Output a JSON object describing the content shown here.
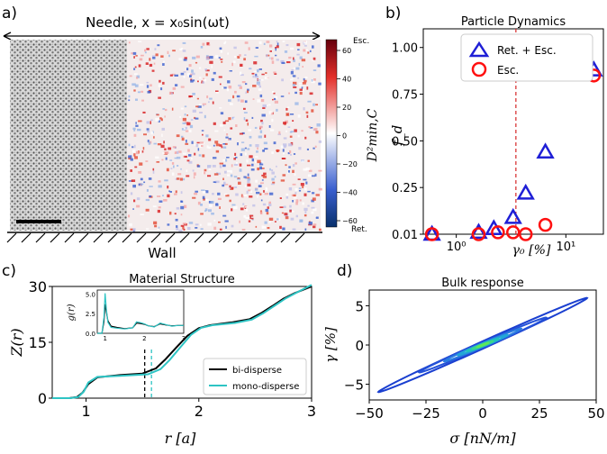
{
  "panel_labels": {
    "a": "a)",
    "b": "b)",
    "c": "c)",
    "d": "d)"
  },
  "panel_a": {
    "needle_label": "Needle, x = x₀sin(ωt)",
    "wall_label": "Wall",
    "colorbar": {
      "top_label": "Esc.",
      "bottom_label": "Ret.",
      "axis_label": "D²min,C",
      "ticks": [
        "60",
        "40",
        "20",
        "0",
        "−20",
        "−40",
        "−60"
      ],
      "colors": {
        "high": "#a50f15",
        "mid": "#ffffff",
        "low": "#08306b"
      }
    }
  },
  "chart_data": [
    {
      "id": "b",
      "type": "scatter",
      "title": "Particle Dynamics",
      "xlabel": "γ₀ [%]",
      "ylabel": "f_d",
      "xscale": "log",
      "xlim": [
        0.5,
        22
      ],
      "ylim": [
        0.0,
        1.1
      ],
      "yticks": [
        "0.01",
        "0.25",
        "0.50",
        "0.75",
        "1.00"
      ],
      "ytick_values": [
        0.01,
        0.25,
        0.5,
        0.75,
        1.0
      ],
      "xticks": [
        "10⁰",
        "10¹"
      ],
      "xtick_values": [
        1,
        10
      ],
      "vline": {
        "x": 3.5,
        "color": "#d62728",
        "style": "dashed"
      },
      "series": [
        {
          "name": "Ret. + Esc.",
          "marker": "triangle",
          "color": "#1f1fd6",
          "x": [
            0.6,
            1.6,
            2.2,
            3.3,
            4.3,
            6.5,
            18
          ],
          "y": [
            0.0,
            0.01,
            0.03,
            0.09,
            0.22,
            0.44,
            0.88
          ]
        },
        {
          "name": "Esc.",
          "marker": "circle",
          "color": "#ff1010",
          "x": [
            0.6,
            1.6,
            2.4,
            3.3,
            4.3,
            6.5,
            18
          ],
          "y": [
            0.0,
            0.0,
            0.01,
            0.01,
            0.0,
            0.05,
            0.85
          ]
        }
      ]
    },
    {
      "id": "c",
      "type": "line",
      "title": "Material Structure",
      "xlabel": "r [a]",
      "ylabel": "Z(r)",
      "xlim": [
        0.7,
        3.0
      ],
      "ylim": [
        0,
        30
      ],
      "xticks": [
        "1",
        "2",
        "3"
      ],
      "xtick_values": [
        1,
        2,
        3
      ],
      "yticks": [
        "0",
        "15",
        "30"
      ],
      "ytick_values": [
        0,
        15,
        30
      ],
      "series": [
        {
          "name": "bi-disperse",
          "color": "#000000",
          "x": [
            0.7,
            0.85,
            0.92,
            0.97,
            1.02,
            1.1,
            1.3,
            1.5,
            1.62,
            1.7,
            1.8,
            1.9,
            2.0,
            2.1,
            2.3,
            2.45,
            2.55,
            2.65,
            2.75,
            2.85,
            3.0
          ],
          "y": [
            0,
            0,
            0.3,
            1.5,
            3.8,
            5.6,
            6.2,
            6.6,
            8.0,
            10.3,
            13.6,
            16.8,
            18.8,
            19.6,
            20.4,
            21.2,
            22.8,
            24.7,
            26.7,
            28.2,
            30.0
          ]
        },
        {
          "name": "mono-disperse",
          "color": "#2ec4c4",
          "x": [
            0.7,
            0.86,
            0.93,
            0.98,
            1.02,
            1.1,
            1.3,
            1.55,
            1.66,
            1.74,
            1.84,
            1.93,
            2.02,
            2.12,
            2.32,
            2.47,
            2.57,
            2.67,
            2.77,
            2.87,
            3.0
          ],
          "y": [
            0,
            0,
            0.3,
            1.8,
            4.2,
            5.7,
            6.0,
            6.4,
            7.8,
            10.2,
            13.8,
            17.0,
            18.9,
            19.6,
            20.2,
            21.1,
            22.8,
            24.8,
            26.8,
            28.4,
            30.4
          ]
        }
      ],
      "vlines": [
        {
          "x": 1.52,
          "color": "#000000"
        },
        {
          "x": 1.58,
          "color": "#2ec4c4"
        }
      ],
      "inset": {
        "ylabel": "g(r)",
        "xlim": [
          0.8,
          3.0
        ],
        "ylim": [
          0,
          5.5
        ],
        "xticks": [
          "1",
          "2",
          "3"
        ],
        "xtick_values": [
          1,
          2,
          3
        ],
        "yticks": [
          "0.0",
          "2.5",
          "5.0"
        ],
        "ytick_values": [
          0,
          2.5,
          5.0
        ],
        "series": [
          {
            "name": "bi-disperse",
            "color": "#000000",
            "x": [
              0.8,
              0.92,
              0.97,
              1.0,
              1.03,
              1.07,
              1.15,
              1.3,
              1.5,
              1.7,
              1.8,
              1.9,
              2.0,
              2.1,
              2.25,
              2.4,
              2.55,
              2.7,
              2.85,
              3.0
            ],
            "y": [
              0,
              0,
              1.5,
              3.7,
              2.8,
              1.6,
              0.9,
              0.75,
              0.6,
              0.7,
              1.3,
              1.25,
              1.15,
              0.95,
              0.85,
              1.2,
              1.05,
              0.95,
              1.0,
              1.0
            ]
          },
          {
            "name": "mono-disperse",
            "color": "#2ec4c4",
            "x": [
              0.8,
              0.92,
              0.97,
              1.0,
              1.03,
              1.07,
              1.15,
              1.3,
              1.5,
              1.7,
              1.8,
              1.9,
              2.0,
              2.1,
              2.25,
              2.4,
              2.55,
              2.7,
              2.85,
              3.0
            ],
            "y": [
              0,
              0,
              2.0,
              5.1,
              3.2,
              1.4,
              0.75,
              0.65,
              0.55,
              0.7,
              1.45,
              1.35,
              1.2,
              0.95,
              0.8,
              1.3,
              1.1,
              0.9,
              1.0,
              1.0
            ]
          }
        ]
      }
    },
    {
      "id": "d",
      "type": "line",
      "title": "Bulk response",
      "xlabel": "σ [nN/m]",
      "ylabel": "γ [%]",
      "xlim": [
        -50,
        50
      ],
      "ylim": [
        -7,
        7
      ],
      "xticks": [
        "−50",
        "−25",
        "0",
        "25",
        "50"
      ],
      "xtick_values": [
        -50,
        -25,
        0,
        25,
        50
      ],
      "yticks": [
        "−5",
        "0",
        "5"
      ],
      "ytick_values": [
        -5,
        0,
        5
      ],
      "loops": [
        {
          "amp_sigma": 46,
          "amp_gamma": 6.0,
          "width": 0.08,
          "color": "#1a3fd0"
        },
        {
          "amp_sigma": 28,
          "amp_gamma": 3.5,
          "width": 0.1,
          "color": "#2452d8"
        },
        {
          "amp_sigma": 17,
          "amp_gamma": 2.1,
          "width": 0.12,
          "color": "#2a7de0"
        },
        {
          "amp_sigma": 11,
          "amp_gamma": 1.3,
          "width": 0.15,
          "color": "#22a6d6"
        },
        {
          "amp_sigma": 7,
          "amp_gamma": 0.8,
          "width": 0.18,
          "color": "#22c4b8"
        },
        {
          "amp_sigma": 4.5,
          "amp_gamma": 0.5,
          "width": 0.2,
          "color": "#3cd68a"
        },
        {
          "amp_sigma": 2.5,
          "amp_gamma": 0.28,
          "width": 0.22,
          "color": "#5ee85a"
        }
      ]
    }
  ],
  "legend_b": {
    "ret_esc": "Ret. + Esc.",
    "esc": "Esc."
  },
  "legend_c": {
    "bi": "bi-disperse",
    "mono": "mono-disperse"
  }
}
